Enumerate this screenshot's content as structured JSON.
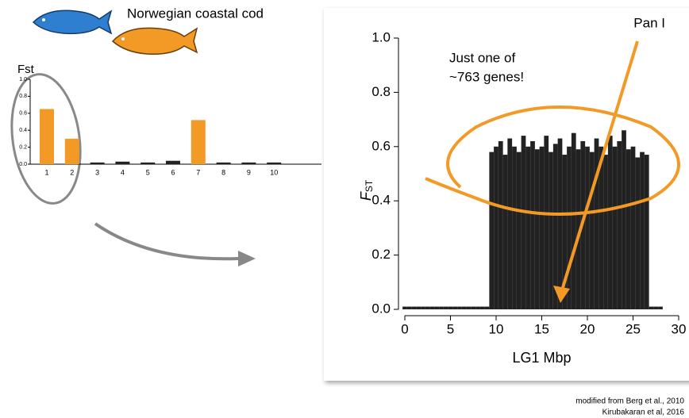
{
  "fish_label": "Norwegian coastal cod",
  "credits": [
    "modified from Berg et al., 2010",
    "Kirubakaran et al, 2016"
  ],
  "chart_data": [
    {
      "type": "bar",
      "ylabel": "Fst",
      "categories": [
        "1",
        "2",
        "3",
        "4",
        "5",
        "6",
        "7",
        "8",
        "9",
        "10"
      ],
      "values": [
        0.65,
        0.3,
        0.02,
        0.03,
        0.02,
        0.04,
        0.52,
        0.02,
        0.02,
        0.02
      ],
      "colors": [
        "#f39a26",
        "#f39a26",
        "#222222",
        "#222222",
        "#222222",
        "#222222",
        "#f39a26",
        "#222222",
        "#222222",
        "#222222"
      ],
      "ylim": [
        0,
        1
      ],
      "yticks": [
        {
          "value": 0,
          "label": "0.0"
        },
        0.2,
        0.4,
        0.6,
        0.8,
        {
          "value": 1,
          "label": "1.0"
        }
      ]
    },
    {
      "type": "spike",
      "ylabel": {
        "text": "F",
        "sub": "ST"
      },
      "xlabel": "LG1 Mbp",
      "annotations": [
        "Just one of",
        "~763 genes!",
        "Pan I"
      ],
      "color": "#222222",
      "x": [
        0,
        0.5,
        1,
        1.5,
        2,
        2.5,
        3,
        3.5,
        4,
        4.5,
        5,
        5.5,
        6,
        6.5,
        7,
        7.5,
        8,
        8.5,
        9,
        9.5,
        10,
        10.5,
        11,
        11.5,
        12,
        12.5,
        13,
        13.5,
        14,
        14.5,
        15,
        15.5,
        16,
        16.5,
        17,
        17.5,
        18,
        18.5,
        19,
        19.5,
        20,
        20.5,
        21,
        21.5,
        22,
        22.5,
        23,
        23.5,
        24,
        24.5,
        25,
        25.5,
        26,
        26.5,
        27,
        27.5,
        28
      ],
      "values": [
        0.01,
        0.01,
        0.01,
        0.01,
        0.01,
        0.01,
        0.01,
        0.01,
        0.01,
        0.01,
        0.01,
        0.01,
        0.01,
        0.01,
        0.01,
        0.01,
        0.01,
        0.01,
        0.01,
        0.58,
        0.6,
        0.62,
        0.57,
        0.63,
        0.6,
        0.58,
        0.64,
        0.6,
        0.62,
        0.59,
        0.6,
        0.64,
        0.58,
        0.61,
        0.63,
        0.57,
        0.6,
        0.65,
        0.59,
        0.62,
        0.6,
        0.58,
        0.63,
        0.6,
        0.57,
        0.64,
        0.6,
        0.62,
        0.66,
        0.59,
        0.6,
        0.56,
        0.58,
        0.57,
        0.01,
        0.01,
        0.01
      ],
      "xlim": [
        0,
        30
      ],
      "xticks": [
        0,
        5,
        10,
        15,
        20,
        25,
        30
      ],
      "ylim": [
        0,
        1
      ],
      "yticks": [
        {
          "value": 0,
          "label": "0.0"
        },
        0.2,
        0.4,
        0.6,
        0.8,
        {
          "value": 1,
          "label": "1.0"
        }
      ]
    }
  ]
}
